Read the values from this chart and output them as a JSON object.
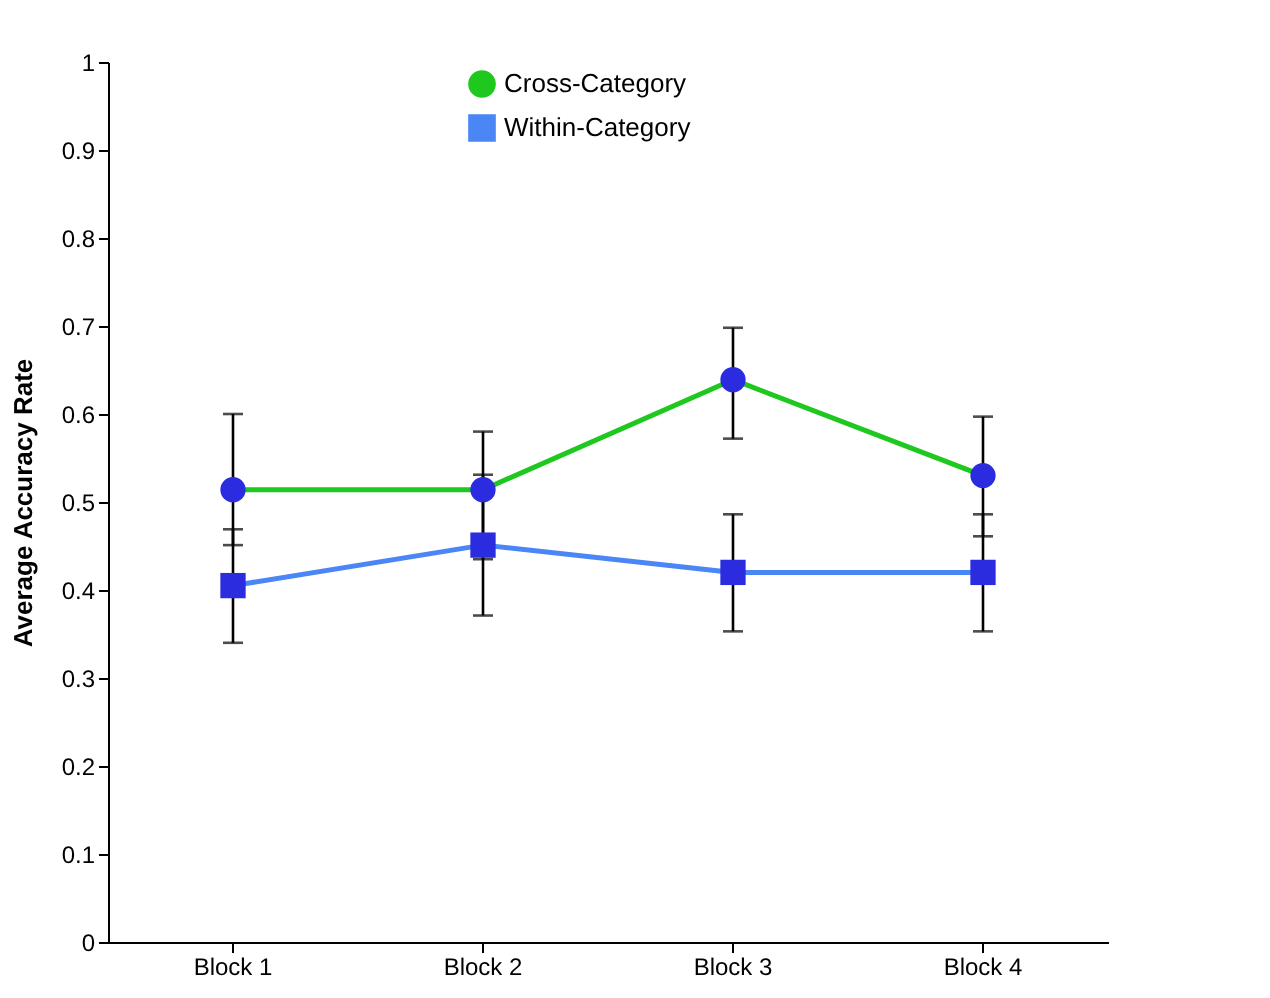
{
  "chart_data": {
    "type": "line",
    "ylabel": "Average Accuracy Rate",
    "categories": [
      "Block 1",
      "Block 2",
      "Block 3",
      "Block 4"
    ],
    "series": [
      {
        "name": "Cross-Category",
        "color": "#1ec81e",
        "marker": "circle",
        "values": [
          0.514,
          0.514,
          0.639,
          0.53
        ],
        "errors": [
          [
            0.451,
            0.6
          ],
          [
            0.435,
            0.58
          ],
          [
            0.572,
            0.698
          ],
          [
            0.461,
            0.597
          ]
        ]
      },
      {
        "name": "Within-Category",
        "color": "#4a86f5",
        "marker": "square",
        "values": [
          0.405,
          0.451,
          0.42,
          0.42
        ],
        "errors": [
          [
            0.34,
            0.469
          ],
          [
            0.371,
            0.531
          ],
          [
            0.353,
            0.486
          ],
          [
            0.353,
            0.486
          ]
        ]
      }
    ],
    "ylim": [
      0,
      1
    ],
    "yticks": [
      0,
      0.1,
      0.2,
      0.3,
      0.4,
      0.5,
      0.6,
      0.7,
      0.8,
      0.9,
      1
    ],
    "grid": false,
    "legend": "top",
    "line_style": "solid"
  }
}
